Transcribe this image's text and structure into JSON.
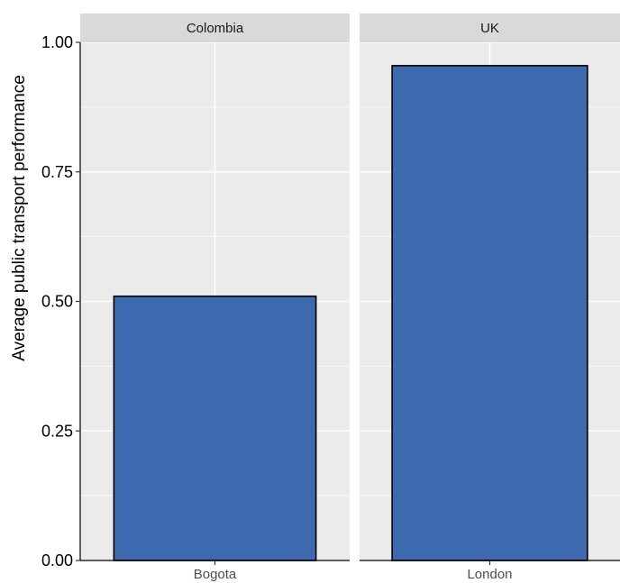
{
  "chart_data": {
    "type": "bar",
    "facets": [
      {
        "strip_label": "Colombia",
        "categories": [
          "Bogota"
        ],
        "values": [
          0.51
        ]
      },
      {
        "strip_label": "UK",
        "categories": [
          "London"
        ],
        "values": [
          0.955
        ]
      }
    ],
    "title": "",
    "xlabel": "",
    "ylabel": "Average public transport performance",
    "ylim": [
      0,
      1
    ],
    "yticks": [
      "0.00",
      "0.25",
      "0.50",
      "0.75",
      "1.00"
    ],
    "grid": true,
    "legend": "none",
    "colors": {
      "bar_fill": "#3d6aae",
      "bar_outline": "#000000",
      "panel_background": "#ebebeb",
      "strip_background": "#d9d9d9",
      "gridline": "#ffffff"
    }
  }
}
